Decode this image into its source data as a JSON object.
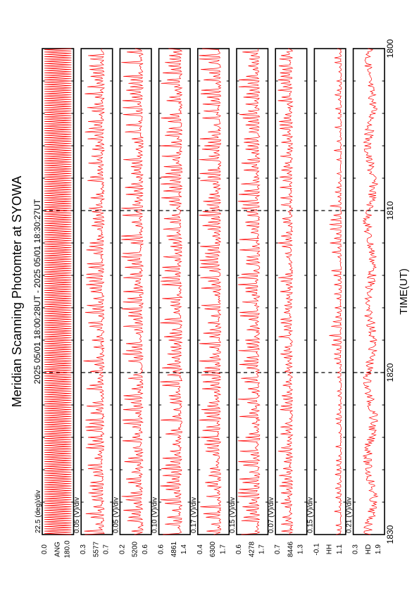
{
  "title": "Meridian Scanning Photomter at SYOWA",
  "time_range": "2025 05/01 18:00:28UT - 2025 05/01 18:30:27UT",
  "xlabel": "TIME(UT)",
  "trace_color": "#ff0000",
  "chart_data": {
    "type": "line",
    "orientation": "rotated-90-ccw",
    "x_ticks": [
      "1800",
      "1810",
      "1820",
      "1830"
    ],
    "xlim": [
      0,
      30
    ],
    "x_minor_ticks_every_minutes": 2,
    "dashed_vertical_lines_at_minutes": [
      10,
      20
    ],
    "panels": [
      {
        "name": "ANG",
        "scale": "22.5 (deg)/div",
        "y_top": "180.0",
        "y_bottom": "0.0",
        "ylim": [
          0,
          180
        ],
        "pattern": "sawtooth",
        "amplitude": 1.0,
        "baseline": 0.5
      },
      {
        "name": "5577",
        "scale": "0.05 (V)/div",
        "y_top": "0.7",
        "y_bottom": "0.3",
        "ylim": [
          0.3,
          0.7
        ],
        "pattern": "spiky",
        "amplitude": 0.7,
        "baseline": 0.25
      },
      {
        "name": "5200",
        "scale": "0.05 (V)/div",
        "y_top": "0.6",
        "y_bottom": "0.2",
        "ylim": [
          0.2,
          0.6
        ],
        "pattern": "spiky",
        "amplitude": 0.75,
        "baseline": 0.25
      },
      {
        "name": "4861",
        "scale": "0.10 (V)/div",
        "y_top": "1.4",
        "y_bottom": "0.6",
        "ylim": [
          0.6,
          1.4
        ],
        "pattern": "spiky",
        "amplitude": 0.75,
        "baseline": 0.25
      },
      {
        "name": "6300",
        "scale": "0.17 (V)/div",
        "y_top": "1.7",
        "y_bottom": "0.4",
        "ylim": [
          0.4,
          1.7
        ],
        "pattern": "spiky",
        "amplitude": 0.75,
        "baseline": 0.25
      },
      {
        "name": "4278",
        "scale": "0.15 (V)/div",
        "y_top": "1.7",
        "y_bottom": "0.6",
        "ylim": [
          0.6,
          1.7
        ],
        "pattern": "spiky",
        "amplitude": 0.8,
        "baseline": 0.25
      },
      {
        "name": "8446",
        "scale": "0.07 (V)/div",
        "y_top": "1.3",
        "y_bottom": "0.7",
        "ylim": [
          0.7,
          1.3
        ],
        "pattern": "spiky",
        "amplitude": 0.5,
        "baseline": 0.45
      },
      {
        "name": "HH",
        "scale": "0.15 (V)/div",
        "y_top": "1.1",
        "y_bottom": "-0.1",
        "ylim": [
          -0.1,
          1.1
        ],
        "pattern": "quiet",
        "amplitude": 0.25,
        "baseline": 0.12
      },
      {
        "name": "HD",
        "scale": "0.21 (V)/div",
        "y_top": "1.9",
        "y_bottom": "0.3",
        "ylim": [
          0.3,
          1.9
        ],
        "pattern": "dense",
        "amplitude": 0.3,
        "baseline": 0.3
      }
    ]
  }
}
